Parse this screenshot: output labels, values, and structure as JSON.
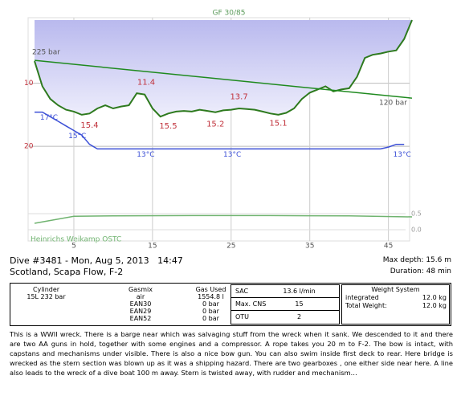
{
  "chart_data": {
    "type": "line",
    "title": "GF 30/85",
    "dive_computer": "Heinrichs Weikamp OSTC",
    "x": [
      0,
      1,
      2,
      3,
      4,
      5,
      6,
      7,
      8,
      9,
      10,
      11,
      12,
      13,
      14,
      15,
      16,
      17,
      18,
      19,
      20,
      21,
      22,
      23,
      24,
      25,
      26,
      27,
      28,
      29,
      30,
      31,
      32,
      33,
      34,
      35,
      36,
      37,
      38,
      39,
      40,
      41,
      42,
      43,
      44,
      45,
      46,
      47,
      48
    ],
    "xlim": [
      0,
      48
    ],
    "xticks": [
      5,
      15,
      25,
      35,
      45
    ],
    "ylim": [
      0,
      35
    ],
    "yticks": [
      10,
      20
    ],
    "y_inverted": true,
    "grid": true,
    "y2lim": [
      3,
      27
    ],
    "series": [
      {
        "color": "#2e7a1e",
        "values": [
          6.5,
          10.5,
          12.5,
          13.5,
          14.2,
          14.5,
          15.0,
          14.8,
          14.0,
          13.5,
          14.0,
          13.7,
          13.5,
          11.6,
          11.8,
          14.0,
          15.3,
          14.8,
          14.5,
          14.4,
          14.5,
          14.2,
          14.4,
          14.6,
          14.3,
          14.2,
          14.0,
          14.1,
          14.2,
          14.5,
          14.8,
          15.0,
          14.7,
          14.0,
          12.5,
          11.5,
          11.0,
          10.5,
          11.3,
          11.0,
          10.8,
          9.0,
          6.0,
          5.5,
          5.3,
          5.0,
          4.8,
          3.0,
          0
        ]
      },
      {
        "color": "#3b4fd6",
        "axis": "y2",
        "values": [
          17,
          17,
          16.5,
          16,
          15.5,
          15,
          14.5,
          13.5,
          13,
          13,
          13,
          13,
          13,
          13,
          13,
          13,
          13,
          13,
          13,
          13,
          13,
          13,
          13,
          13,
          13,
          13,
          13,
          13,
          13,
          13,
          13,
          13,
          13,
          13,
          13,
          13,
          13,
          13,
          13,
          13,
          13,
          13,
          13,
          13,
          13,
          13.2,
          13.5,
          13.5,
          null
        ]
      }
    ],
    "pressure": {
      "x": [
        0,
        48
      ],
      "values": [
        225,
        120
      ],
      "value_labels": [
        "225 bar",
        "120 bar"
      ],
      "color": "#1f8a1f",
      "ylim": [
        -277,
        337
      ]
    },
    "depth_labels": {
      "x": [
        7,
        14.2,
        17,
        23,
        26,
        31
      ],
      "values": [
        15.4,
        11.4,
        15.5,
        15.2,
        13.7,
        15.1
      ],
      "color": "#c0303a"
    },
    "temp_labels": {
      "x": [
        0.7,
        4.3,
        13,
        24,
        45.6
      ],
      "values": [
        17,
        15,
        13,
        13,
        13
      ],
      "value_labels": [
        "17°C",
        "15°C",
        "13°C",
        "13°C",
        "13°C"
      ],
      "color": "#3b4fd6"
    },
    "ppo2": {
      "x": [
        0,
        5,
        10,
        20,
        30,
        40,
        48
      ],
      "values": [
        0.2,
        0.42,
        0.43,
        0.44,
        0.44,
        0.43,
        0.4
      ],
      "ylim": [
        -0.15,
        0.65
      ],
      "yticks": [
        0.5,
        {
          "value": 0,
          "label": "0.0"
        }
      ],
      "color": "#6fb36f"
    }
  },
  "dive": {
    "title": "Dive #3481 - Mon, Aug 5, 2013   14:47",
    "location": "Scotland, Scapa Flow, F-2",
    "max_depth": "Max depth: 15.6 m",
    "duration": "Duration: 48 min",
    "cylinder": {
      "header": "Cylinder",
      "value": "15L 232 bar"
    },
    "gasmix": {
      "header": "Gasmix",
      "values": [
        "air",
        "EAN30",
        "EAN29",
        "EAN52"
      ]
    },
    "gas_used": {
      "header": "Gas Used",
      "values": [
        "1554.8 l",
        "0 bar",
        "0 bar",
        "0 bar"
      ]
    },
    "stats": [
      [
        "SAC",
        "13.6 l/min"
      ],
      [
        "Max. CNS",
        "15"
      ],
      [
        "OTU",
        "2"
      ]
    ],
    "weight": {
      "header": "Weight System",
      "rows": [
        [
          "integrated",
          "12.0 kg"
        ],
        [
          "Total Weight:",
          "12.0 kg"
        ]
      ]
    },
    "notes": "This is a WWII wreck. There is a barge near which was salvaging stuff from the wreck when it sank. We descended to it and there are two AA guns in hold, together with some engines and a compressor. A rope takes you 20 m to F-2. The bow is intact, with capstans and mechanisms under visible. There is also a nice bow gun. You can also swim inside first deck to rear. Here bridge is wrecked as the stern section was blown up as it was a shipping hazard. There are two gearboxes , one either side near here. A line also leads to the wreck of a dive boat 100 m away. Stern is twisted away, with rudder and mechanism…"
  }
}
